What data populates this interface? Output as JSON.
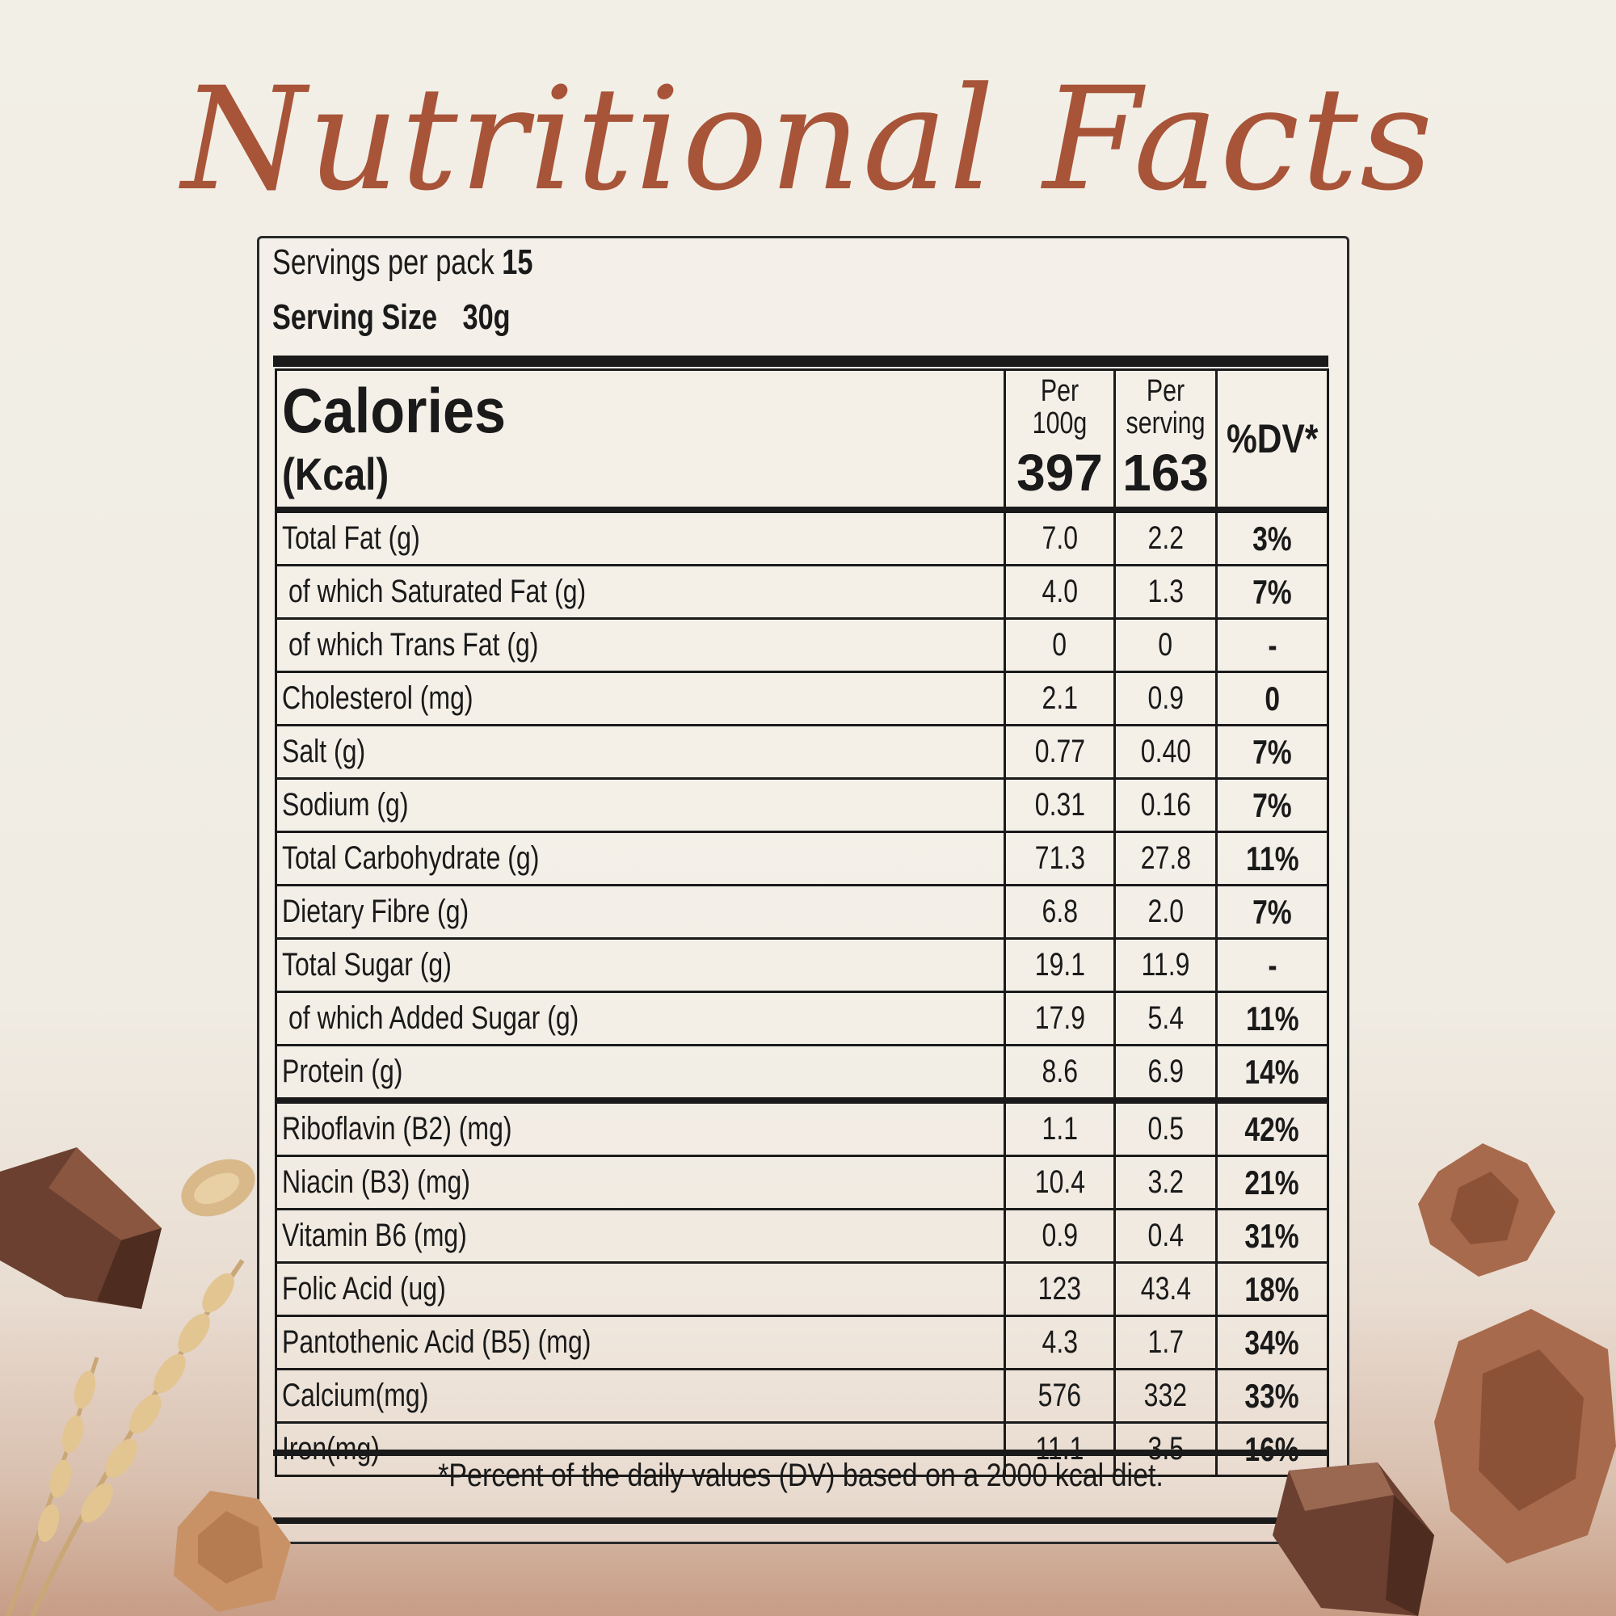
{
  "title": "Nutritional Facts",
  "servings": {
    "per_pack_label": "Servings per pack",
    "per_pack_value": "15",
    "size_label": "Serving Size",
    "size_value": "30g"
  },
  "header": {
    "calories_label": "Calories",
    "calories_unit": "(Kcal)",
    "col1_line1": "Per",
    "col1_line2": "100g",
    "col1_value": "397",
    "col2_line1": "Per",
    "col2_line2": "serving",
    "col2_value": "163",
    "dv_label": "%DV*"
  },
  "rows": [
    {
      "name": "Total Fat (g)",
      "per100": "7.0",
      "perServing": "2.2",
      "dv": "3%"
    },
    {
      "name": "of which Saturated Fat (g)",
      "per100": "4.0",
      "perServing": "1.3",
      "dv": "7%"
    },
    {
      "name": "of which Trans Fat (g)",
      "per100": "0",
      "perServing": "0",
      "dv": "-"
    },
    {
      "name": "Cholesterol (mg)",
      "per100": "2.1",
      "perServing": "0.9",
      "dv": "0"
    },
    {
      "name": "Salt (g)",
      "per100": "0.77",
      "perServing": "0.40",
      "dv": "7%"
    },
    {
      "name": "Sodium (g)",
      "per100": "0.31",
      "perServing": "0.16",
      "dv": "7%"
    },
    {
      "name": "Total Carbohydrate (g)",
      "per100": "71.3",
      "perServing": "27.8",
      "dv": "11%"
    },
    {
      "name": "Dietary Fibre (g)",
      "per100": "6.8",
      "perServing": "2.0",
      "dv": "7%"
    },
    {
      "name": "Total Sugar (g)",
      "per100": "19.1",
      "perServing": "11.9",
      "dv": "-"
    },
    {
      "name": "of which Added Sugar (g)",
      "per100": "17.9",
      "perServing": "5.4",
      "dv": "11%"
    },
    {
      "name": "Protein (g)",
      "per100": "8.6",
      "perServing": "6.9",
      "dv": "14%"
    },
    {
      "name": "Riboflavin (B2) (mg)",
      "per100": "1.1",
      "perServing": "0.5",
      "dv": "42%"
    },
    {
      "name": "Niacin (B3) (mg)",
      "per100": "10.4",
      "perServing": "3.2",
      "dv": "21%"
    },
    {
      "name": "Vitamin B6 (mg)",
      "per100": "0.9",
      "perServing": "0.4",
      "dv": "31%"
    },
    {
      "name": "Folic Acid (ug)",
      "per100": "123",
      "perServing": "43.4",
      "dv": "18%"
    },
    {
      "name": "Pantothenic Acid (B5) (mg)",
      "per100": "4.3",
      "perServing": "1.7",
      "dv": "34%"
    },
    {
      "name": "Calcium(mg)",
      "per100": "576",
      "perServing": "332",
      "dv": "33%"
    },
    {
      "name": "Iron(mg)",
      "per100": "11.1",
      "perServing": "3.5",
      "dv": "16%"
    }
  ],
  "footer": "*Percent of the daily values (DV) based on a 2000 kcal diet.",
  "colors": {
    "title": "#a85438",
    "ink": "#1a1a1a",
    "chocolate": "#6b4030",
    "flake": "#a86a4c",
    "wheat": "#d9b98a"
  }
}
